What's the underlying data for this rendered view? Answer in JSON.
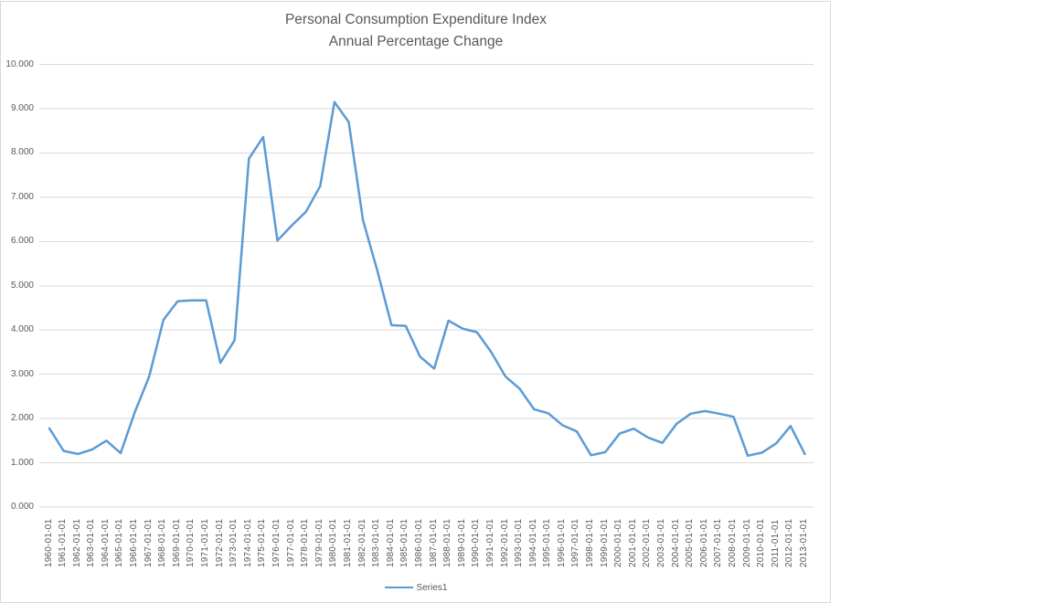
{
  "chart_data": {
    "type": "line",
    "title": "Personal Consumption Expenditure Index",
    "subtitle": "Annual Percentage Change",
    "legend_label": "Series1",
    "legend_position": "bottom",
    "grid": "horizontal-only",
    "x_label_rotation": 90,
    "series_color": "#5b9bd5",
    "gridline_color": "#d9d9d9",
    "text_color": "#595959",
    "ylim": [
      0,
      10
    ],
    "ytick_labels": [
      "0.000",
      "1.000",
      "2.000",
      "3.000",
      "4.000",
      "5.000",
      "6.000",
      "7.000",
      "8.000",
      "9.000",
      "10.000"
    ],
    "x": [
      "1960-01-01",
      "1961-01-01",
      "1962-01-01",
      "1963-01-01",
      "1964-01-01",
      "1965-01-01",
      "1966-01-01",
      "1967-01-01",
      "1968-01-01",
      "1969-01-01",
      "1970-01-01",
      "1971-01-01",
      "1972-01-01",
      "1973-01-01",
      "1974-01-01",
      "1975-01-01",
      "1976-01-01",
      "1977-01-01",
      "1978-01-01",
      "1979-01-01",
      "1980-01-01",
      "1981-01-01",
      "1982-01-01",
      "1983-01-01",
      "1984-01-01",
      "1985-01-01",
      "1986-01-01",
      "1987-01-01",
      "1988-01-01",
      "1989-01-01",
      "1990-01-01",
      "1991-01-01",
      "1992-01-01",
      "1993-01-01",
      "1994-01-01",
      "1995-01-01",
      "1996-01-01",
      "1997-01-01",
      "1998-01-01",
      "1999-01-01",
      "2000-01-01",
      "2001-01-01",
      "2002-01-01",
      "2003-01-01",
      "2004-01-01",
      "2005-01-01",
      "2006-01-01",
      "2007-01-01",
      "2008-01-01",
      "2009-01-01",
      "2010-01-01",
      "2011-01-01",
      "2012-01-01",
      "2013-01-01"
    ],
    "series": [
      {
        "name": "Series1",
        "values": [
          1.78,
          1.27,
          1.2,
          1.3,
          1.5,
          1.22,
          2.15,
          2.95,
          4.23,
          4.65,
          4.67,
          4.67,
          3.26,
          3.77,
          7.87,
          8.36,
          6.02,
          6.36,
          6.67,
          7.25,
          9.15,
          8.7,
          6.48,
          5.35,
          4.11,
          4.09,
          3.4,
          3.13,
          4.21,
          4.03,
          3.95,
          3.5,
          2.95,
          2.67,
          2.21,
          2.12,
          1.85,
          1.71,
          1.17,
          1.24,
          1.66,
          1.77,
          1.57,
          1.45,
          1.88,
          2.11,
          2.17,
          2.11,
          2.04,
          1.16,
          1.23,
          1.44,
          1.83,
          1.2
        ]
      }
    ]
  }
}
